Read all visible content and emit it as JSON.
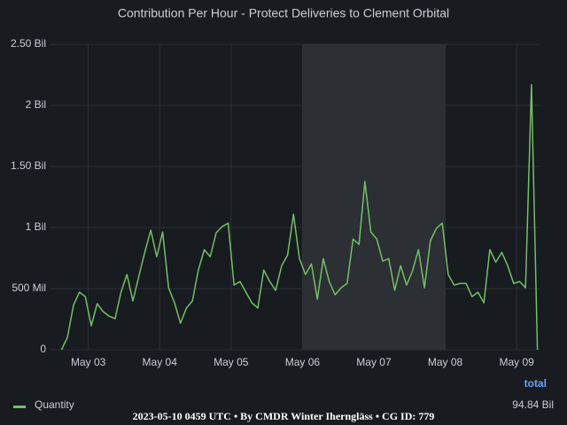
{
  "chart_data": {
    "type": "line",
    "title": "Contribution Per Hour - Protect Deliveries to Clement Orbital",
    "x": [
      "May 02 15:00",
      "May 02 17:00",
      "May 02 19:00",
      "May 02 21:00",
      "May 02 23:00",
      "May 03 01:00",
      "May 03 03:00",
      "May 03 05:00",
      "May 03 07:00",
      "May 03 09:00",
      "May 03 11:00",
      "May 03 13:00",
      "May 03 15:00",
      "May 03 17:00",
      "May 03 19:00",
      "May 03 21:00",
      "May 03 23:00",
      "May 04 01:00",
      "May 04 03:00",
      "May 04 05:00",
      "May 04 07:00",
      "May 04 09:00",
      "May 04 11:00",
      "May 04 13:00",
      "May 04 15:00",
      "May 04 17:00",
      "May 04 19:00",
      "May 04 21:00",
      "May 04 23:00",
      "May 05 01:00",
      "May 05 03:00",
      "May 05 05:00",
      "May 05 07:00",
      "May 05 09:00",
      "May 05 11:00",
      "May 05 13:00",
      "May 05 15:00",
      "May 05 17:00",
      "May 05 19:00",
      "May 05 21:00",
      "May 05 23:00",
      "May 06 01:00",
      "May 06 03:00",
      "May 06 05:00",
      "May 06 07:00",
      "May 06 09:00",
      "May 06 11:00",
      "May 06 13:00",
      "May 06 15:00",
      "May 06 17:00",
      "May 06 19:00",
      "May 06 21:00",
      "May 06 23:00",
      "May 07 01:00",
      "May 07 03:00",
      "May 07 05:00",
      "May 07 07:00",
      "May 07 09:00",
      "May 07 11:00",
      "May 07 13:00",
      "May 07 15:00",
      "May 07 17:00",
      "May 07 19:00",
      "May 07 21:00",
      "May 07 23:00",
      "May 08 01:00",
      "May 08 03:00",
      "May 08 05:00",
      "May 08 07:00",
      "May 08 09:00",
      "May 08 11:00",
      "May 08 13:00",
      "May 08 15:00",
      "May 08 17:00",
      "May 08 19:00",
      "May 08 21:00",
      "May 08 23:00",
      "May 09 01:00",
      "May 09 03:00",
      "May 09 05:00",
      "May 09 07:00"
    ],
    "series": [
      {
        "name": "Quantity",
        "color": "#73bf69",
        "values": [
          0,
          101,
          362,
          471,
          435,
          196,
          377,
          312,
          275,
          254,
          471,
          616,
          399,
          601,
          797,
          978,
          761,
          964,
          507,
          384,
          217,
          341,
          399,
          652,
          819,
          761,
          957,
          1007,
          1036,
          529,
          558,
          471,
          384,
          341,
          652,
          558,
          486,
          688,
          775,
          1109,
          746,
          616,
          703,
          413,
          746,
          558,
          449,
          507,
          543,
          906,
          862,
          1377,
          964,
          906,
          725,
          746,
          486,
          688,
          529,
          645,
          819,
          507,
          891,
          993,
          1036,
          616,
          529,
          543,
          543,
          435,
          471,
          384,
          819,
          717,
          797,
          688,
          543,
          558,
          507,
          2170,
          0
        ]
      }
    ],
    "xlim": [
      "May 02 11:00",
      "May 09 08:00"
    ],
    "xticks": [
      "May 03",
      "May 04",
      "May 05",
      "May 06",
      "May 07",
      "May 08",
      "May 09"
    ],
    "ylim": [
      0,
      2500
    ],
    "yticks": [
      0,
      {
        "value": 500,
        "label": "500 Mil"
      },
      {
        "value": 1000,
        "label": "1 Bil"
      },
      {
        "value": 1500,
        "label": "1.50 Bil"
      },
      {
        "value": 2000,
        "label": "2 Bil"
      },
      {
        "value": 2500,
        "label": "2.50 Bil"
      }
    ],
    "highlight_range": [
      "May 06",
      "May 08"
    ],
    "grid": true,
    "legend_header": "total",
    "legend_total": "94.84 Bil",
    "footer": "2023-05-10 0459 UTC • By CMDR Winter Iherngläss • CG ID: 779"
  }
}
